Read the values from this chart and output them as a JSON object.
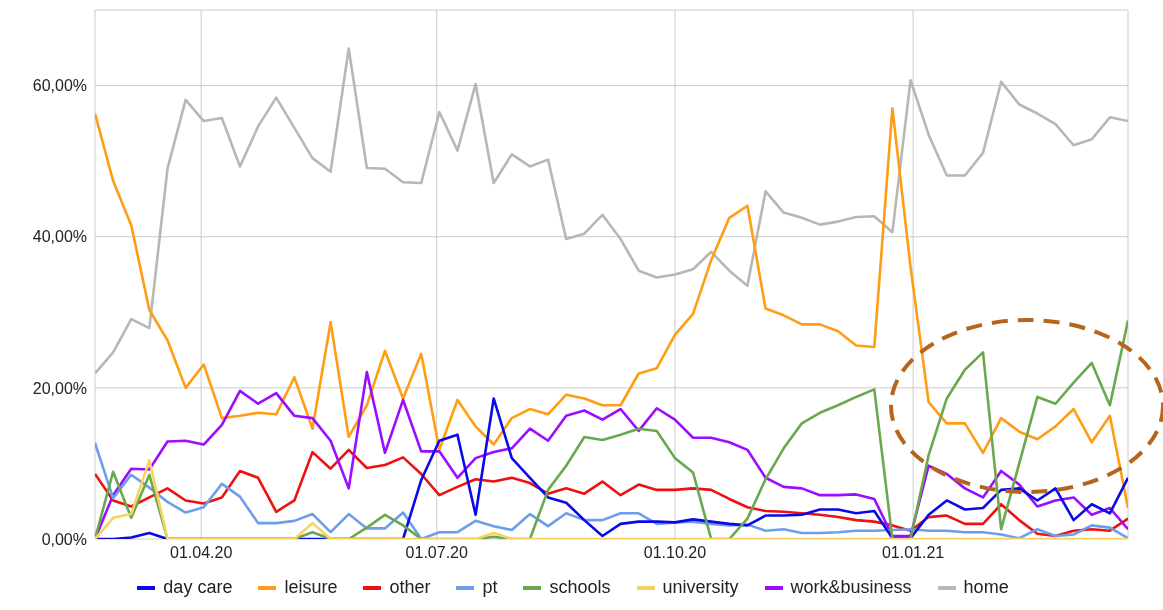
{
  "chart_data": {
    "type": "line",
    "x": [
      "2020-02-20",
      "2020-02-27",
      "2020-03-05",
      "2020-03-12",
      "2020-03-19",
      "2020-03-26",
      "2020-04-02",
      "2020-04-09",
      "2020-04-16",
      "2020-04-23",
      "2020-04-30",
      "2020-05-07",
      "2020-05-14",
      "2020-05-21",
      "2020-05-28",
      "2020-06-04",
      "2020-06-11",
      "2020-06-18",
      "2020-06-25",
      "2020-07-02",
      "2020-07-09",
      "2020-07-16",
      "2020-07-23",
      "2020-07-30",
      "2020-08-06",
      "2020-08-13",
      "2020-08-20",
      "2020-08-27",
      "2020-09-03",
      "2020-09-10",
      "2020-09-17",
      "2020-09-24",
      "2020-10-01",
      "2020-10-08",
      "2020-10-15",
      "2020-10-22",
      "2020-10-29",
      "2020-11-05",
      "2020-11-12",
      "2020-11-19",
      "2020-11-26",
      "2020-12-03",
      "2020-12-10",
      "2020-12-17",
      "2020-12-24",
      "2020-12-31",
      "2021-01-07",
      "2021-01-14",
      "2021-01-21",
      "2021-01-28",
      "2021-02-04",
      "2021-02-11",
      "2021-02-18",
      "2021-02-25",
      "2021-03-04",
      "2021-03-11",
      "2021-03-18",
      "2021-03-25"
    ],
    "series": [
      {
        "name": "day care",
        "color": "#0a0ae8",
        "values": [
          0,
          0,
          0.2,
          0.8,
          0,
          0,
          0,
          0,
          0,
          0,
          0,
          0,
          0,
          0,
          0,
          0,
          0,
          0,
          7.8,
          13.0,
          13.8,
          3.2,
          18.6,
          10.7,
          8.1,
          5.5,
          4.8,
          2.5,
          0.4,
          2.0,
          2.3,
          2.3,
          2.2,
          2.6,
          2.3,
          2.0,
          1.8,
          3.1,
          3.1,
          3.2,
          3.9,
          3.9,
          3.4,
          3.7,
          0.1,
          0.1,
          3.2,
          5.1,
          3.9,
          4.1,
          6.5,
          6.7,
          5.1,
          6.7,
          2.5,
          4.6,
          3.4,
          8.1
        ]
      },
      {
        "name": "leisure",
        "color": "#ff9d14",
        "values": [
          56.3,
          47.4,
          41.5,
          30.3,
          26.3,
          20.0,
          23.1,
          16.0,
          16.3,
          16.7,
          16.5,
          21.4,
          14.6,
          28.7,
          13.5,
          17.7,
          24.9,
          18.6,
          24.5,
          11.8,
          18.4,
          14.9,
          12.5,
          16.0,
          17.2,
          16.5,
          19.1,
          18.6,
          17.7,
          17.7,
          21.9,
          22.6,
          27.0,
          29.8,
          36.9,
          42.5,
          44.1,
          30.5,
          29.6,
          28.4,
          28.4,
          27.5,
          25.6,
          25.4,
          57.0,
          36.0,
          18.1,
          15.3,
          15.3,
          11.4,
          16.0,
          14.2,
          13.2,
          14.9,
          17.2,
          12.8,
          16.3,
          4.1
        ]
      },
      {
        "name": "other",
        "color": "#ee1111",
        "values": [
          8.6,
          5.1,
          4.3,
          5.5,
          6.7,
          5.1,
          4.7,
          5.5,
          9.0,
          8.1,
          3.6,
          5.1,
          11.5,
          9.3,
          11.8,
          9.4,
          9.8,
          10.8,
          8.6,
          5.8,
          6.9,
          7.9,
          7.6,
          8.1,
          7.4,
          6.0,
          6.7,
          6.0,
          7.6,
          5.8,
          7.2,
          6.5,
          6.5,
          6.7,
          6.5,
          5.3,
          4.2,
          3.7,
          3.6,
          3.4,
          3.2,
          2.9,
          2.5,
          2.3,
          1.8,
          1.1,
          2.9,
          3.1,
          2.0,
          2.0,
          4.6,
          2.5,
          0.7,
          0.4,
          1.1,
          1.3,
          1.1,
          2.7
        ]
      },
      {
        "name": "pt",
        "color": "#6d9eeb",
        "values": [
          12.7,
          5.4,
          8.5,
          6.8,
          4.9,
          3.5,
          4.2,
          7.3,
          5.6,
          2.1,
          2.1,
          2.4,
          3.3,
          0.9,
          3.3,
          1.4,
          1.4,
          3.5,
          0,
          0.9,
          0.9,
          2.4,
          1.7,
          1.2,
          3.3,
          1.7,
          3.4,
          2.5,
          2.5,
          3.4,
          3.4,
          2.0,
          2.2,
          2.3,
          2.0,
          1.8,
          1.9,
          1.1,
          1.3,
          0.8,
          0.8,
          0.9,
          1.1,
          1.1,
          1.2,
          1.3,
          1.1,
          1.1,
          0.9,
          0.9,
          0.6,
          0.1,
          1.3,
          0.4,
          0.6,
          1.8,
          1.5,
          0.1
        ]
      },
      {
        "name": "schools",
        "color": "#6aa84f",
        "values": [
          0,
          8.9,
          2.8,
          8.5,
          0,
          0,
          0,
          0,
          0,
          0,
          0,
          0,
          0.9,
          0,
          0,
          1.5,
          3.2,
          1.8,
          0,
          0,
          0,
          0,
          0.3,
          0,
          0,
          6.5,
          9.7,
          13.5,
          13.1,
          13.8,
          14.6,
          14.3,
          10.7,
          8.8,
          0,
          0,
          2.7,
          7.9,
          12.0,
          15.3,
          16.7,
          17.7,
          18.8,
          19.8,
          0,
          0,
          11.1,
          18.6,
          22.4,
          24.7,
          1.3,
          10.0,
          18.8,
          17.9,
          20.7,
          23.3,
          17.7,
          28.9
        ]
      },
      {
        "name": "university",
        "color": "#f6d360",
        "values": [
          0,
          2.8,
          3.3,
          10.4,
          0,
          0,
          0,
          0,
          0,
          0,
          0,
          0,
          2.1,
          0,
          0,
          0,
          0,
          0,
          0,
          0,
          0,
          0,
          0.8,
          0,
          0,
          0,
          0,
          0,
          0,
          0,
          0,
          0,
          0,
          0,
          0,
          0,
          0,
          0,
          0,
          0,
          0,
          0,
          0,
          0,
          0,
          0,
          0,
          0,
          0,
          0,
          0,
          0,
          0,
          0,
          0,
          0,
          0,
          0
        ]
      },
      {
        "name": "work&business",
        "color": "#9b0dff",
        "values": [
          0,
          5.8,
          9.3,
          9.2,
          12.9,
          13.0,
          12.5,
          15.1,
          19.6,
          17.9,
          19.3,
          16.3,
          16.0,
          13.0,
          6.7,
          22.1,
          11.4,
          18.4,
          11.6,
          11.6,
          8.1,
          10.7,
          11.5,
          12.0,
          14.6,
          13.0,
          16.3,
          17.0,
          15.8,
          17.2,
          14.3,
          17.3,
          15.8,
          13.4,
          13.4,
          12.8,
          11.8,
          8.1,
          6.9,
          6.7,
          5.8,
          5.8,
          5.9,
          5.3,
          0.4,
          0.4,
          9.7,
          8.6,
          6.7,
          5.5,
          9.0,
          7.2,
          4.3,
          5.1,
          5.5,
          3.2,
          4.1,
          1.3
        ]
      },
      {
        "name": "home",
        "color": "#b7b7b7",
        "values": [
          21.9,
          24.7,
          29.1,
          27.9,
          49.0,
          58.1,
          55.3,
          55.7,
          49.3,
          54.6,
          58.4,
          54.4,
          50.4,
          48.6,
          64.9,
          49.1,
          49.0,
          47.2,
          47.1,
          56.5,
          51.4,
          60.2,
          47.1,
          50.9,
          49.3,
          50.2,
          39.7,
          40.4,
          42.9,
          39.7,
          35.5,
          34.6,
          35.0,
          35.7,
          38.0,
          35.5,
          33.5,
          46.0,
          43.2,
          42.5,
          41.6,
          42.0,
          42.6,
          42.7,
          40.6,
          60.7,
          53.5,
          48.1,
          48.1,
          51.1,
          60.5,
          57.5,
          56.3,
          54.9,
          52.1,
          52.9,
          55.8,
          55.3
        ]
      }
    ],
    "xlim": [
      "2020-02-20",
      "2021-03-25"
    ],
    "xticks": [
      {
        "value": "2020-04-01",
        "label": "01.04.20"
      },
      {
        "value": "2020-07-01",
        "label": "01.07.20"
      },
      {
        "value": "2020-10-01",
        "label": "01.10.20"
      },
      {
        "value": "2021-01-01",
        "label": "01.01.21"
      }
    ],
    "ylim": [
      0,
      70
    ],
    "yticks": [
      {
        "value": 0,
        "label": "0,00%"
      },
      {
        "value": 20,
        "label": "20,00%"
      },
      {
        "value": 40,
        "label": "40,00%"
      },
      {
        "value": 60,
        "label": "60,00%"
      }
    ],
    "grid": true,
    "legend": "bottom",
    "marker": "none",
    "line_style": "solid"
  }
}
